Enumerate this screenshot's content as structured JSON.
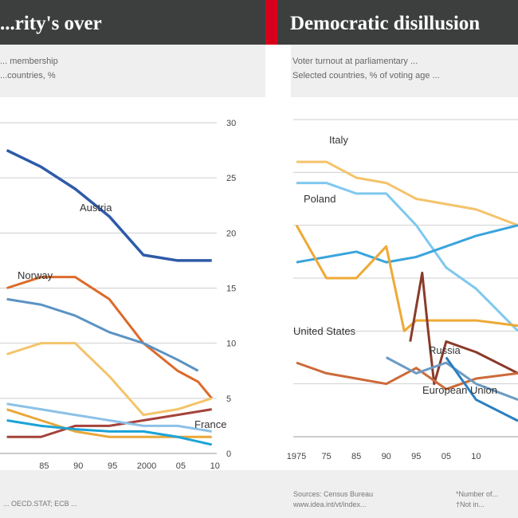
{
  "header": {
    "left_title": "...rity's over",
    "right_title": "Democratic disillusion"
  },
  "left_chart": {
    "subtitle_lines": [
      "... membership",
      "...countries, %"
    ],
    "chart_data": {
      "type": "line",
      "ylim": [
        0,
        30
      ],
      "yticks": [
        "30",
        "25",
        "20",
        "15",
        "10",
        "5",
        "0"
      ],
      "xticks": [
        "85",
        "90",
        "95",
        "2000",
        "05",
        "10"
      ],
      "series": [
        {
          "name": "Austria",
          "color": "#2e5aa8",
          "x": [
            1980,
            1985,
            1990,
            1995,
            2000,
            2005,
            2010
          ],
          "values": [
            27.5,
            26,
            24,
            21.5,
            18,
            17.5,
            17.5
          ]
        },
        {
          "name": "Norway",
          "color": "#dd6a2a",
          "x": [
            1980,
            1985,
            1990,
            1995,
            2000,
            2005,
            2008,
            2010
          ],
          "values": [
            15,
            16,
            16,
            14,
            10,
            7.5,
            6.5,
            5
          ]
        },
        {
          "color": "#5a93c4",
          "x": [
            1980,
            1985,
            1990,
            1995,
            2000,
            2005,
            2008
          ],
          "values": [
            14,
            13.5,
            12.5,
            11,
            10,
            8.5,
            7.5
          ]
        },
        {
          "color": "#f4c36a",
          "x": [
            1980,
            1985,
            1990,
            1995,
            2000,
            2005,
            2010
          ],
          "values": [
            9,
            10,
            10,
            7,
            3.5,
            4,
            5
          ]
        },
        {
          "color": "#a5423a",
          "x": [
            1980,
            1985,
            1990,
            1995,
            2000,
            2005,
            2010
          ],
          "values": [
            1.5,
            1.5,
            2.5,
            2.5,
            3,
            3.5,
            4
          ]
        },
        {
          "name": "France",
          "color": "#e9a83a",
          "x": [
            1980,
            1985,
            1990,
            1995,
            2000,
            2005,
            2010
          ],
          "values": [
            4,
            3,
            2,
            1.5,
            1.5,
            1.5,
            1.5
          ]
        },
        {
          "color": "#8cc1e7",
          "x": [
            1980,
            1985,
            1990,
            1995,
            2000,
            2005,
            2010
          ],
          "values": [
            4.5,
            4,
            3.5,
            3,
            2.5,
            2.5,
            2
          ]
        },
        {
          "color": "#1ba3d8",
          "x": [
            1980,
            1985,
            1990,
            1995,
            2000,
            2005,
            2010
          ],
          "values": [
            3,
            2.5,
            2.2,
            2,
            2,
            1.5,
            0.8
          ]
        }
      ]
    }
  },
  "right_chart": {
    "subtitle_lines": [
      "Voter turnout at parliamentary ...",
      "Selected countries, % of voting age ..."
    ],
    "chart_data": {
      "type": "line",
      "xlim": [
        1975,
        2012
      ],
      "ylim": [
        40,
        100
      ],
      "xticks": [
        "1975",
        "75",
        "85",
        "90",
        "95",
        "05",
        "10"
      ],
      "series": [
        {
          "name": "Italy",
          "color": "#f4c36a",
          "x": [
            1975,
            1980,
            1985,
            1990,
            1995,
            2000,
            2005,
            2012
          ],
          "values": [
            92,
            92,
            89,
            88,
            85,
            84,
            83,
            80
          ]
        },
        {
          "color": "#7fc8ee",
          "x": [
            1975,
            1980,
            1985,
            1990,
            1995,
            2000,
            2005,
            2012
          ],
          "values": [
            88,
            88,
            86,
            86,
            80,
            72,
            68,
            60
          ]
        },
        {
          "color": "#3aa4dc",
          "x": [
            1975,
            1980,
            1985,
            1990,
            1995,
            2000,
            2005,
            2012
          ],
          "values": [
            73,
            74,
            75,
            73,
            74,
            76,
            78,
            80
          ]
        },
        {
          "name": "Poland",
          "color": "#eea935",
          "x": [
            1975,
            1980,
            1985,
            1990,
            1993,
            1995,
            1997,
            2000,
            2005,
            2012
          ],
          "values": [
            80,
            70,
            70,
            76,
            60,
            62,
            62,
            62,
            62,
            61
          ]
        },
        {
          "color": "#8a3b2a",
          "x": [
            1994,
            1996,
            1997,
            1998,
            2000,
            2005,
            2012
          ],
          "values": [
            58,
            71,
            60,
            50,
            58,
            56,
            52
          ]
        },
        {
          "name": "United States",
          "color": "#cc6a3a",
          "x": [
            1975,
            1980,
            1985,
            1990,
            1995,
            2000,
            2005,
            2012
          ],
          "values": [
            54,
            52,
            51,
            50,
            53,
            49,
            51,
            52
          ]
        },
        {
          "name": "Russia",
          "color": "#6b9bc4",
          "x": [
            1990,
            1995,
            2000,
            2005,
            2012
          ],
          "values": [
            55,
            52,
            54,
            50,
            47
          ]
        },
        {
          "name": "European Union",
          "color": "#2a7fbf",
          "x": [
            2000,
            2005,
            2012
          ],
          "values": [
            55,
            47,
            43
          ]
        }
      ]
    }
  },
  "footer": {
    "left_source": "... OECD.STAT; ECB ...",
    "right_source_1": "Sources: Census Bureau",
    "right_source_2": "www.idea.int/vt/index...",
    "right_note_1": "*Number of...",
    "right_note_2": "†Not in..."
  }
}
